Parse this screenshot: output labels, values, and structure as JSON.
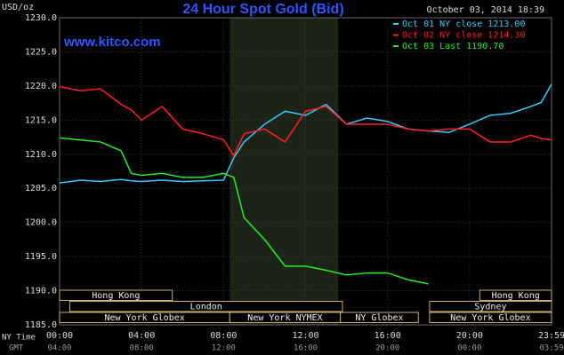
{
  "chart_data": {
    "type": "line",
    "title": "24 Hour Spot Gold (Bid)",
    "subtitle": "www.kitco.com",
    "timestamp": "October 03, 2014 18:39",
    "y_label": "USD/oz",
    "x_row_labels": [
      "NY Time",
      "GMT"
    ],
    "x": [
      0,
      1,
      2,
      3,
      3.5,
      4,
      5,
      6,
      7,
      8,
      8.5,
      9,
      10,
      11,
      12,
      13,
      14,
      15,
      16,
      17,
      18,
      19,
      20,
      21,
      22,
      23,
      23.5,
      24
    ],
    "series": [
      {
        "name": "Oct 01 NY close 1213.00",
        "color": "#33ccff",
        "values": [
          1205.8,
          1206.2,
          1206,
          1206.3,
          1206.1,
          1206,
          1206.2,
          1206,
          1206.1,
          1206.2,
          1209.5,
          1211.8,
          1214.4,
          1216.3,
          1215.7,
          1217.3,
          1214.4,
          1215.3,
          1214.8,
          1213.7,
          1213.4,
          1213.2,
          1214.4,
          1215.7,
          1216,
          1217,
          1217.6,
          1220.3
        ]
      },
      {
        "name": "Oct 02 NY close 1214.30",
        "color": "#ff2020",
        "values": [
          1219.9,
          1219.3,
          1219.6,
          1217.3,
          1216.5,
          1215,
          1217,
          1213.7,
          1213,
          1212.1,
          1209.8,
          1213,
          1213.7,
          1211.8,
          1216.3,
          1217,
          1214.4,
          1214.4,
          1214.4,
          1213.7,
          1213.4,
          1213.7,
          1213.7,
          1211.8,
          1211.8,
          1212.8,
          1212.3,
          1212.1
        ]
      },
      {
        "name": "Oct 03 Last 1190.70",
        "color": "#22ee22",
        "values": [
          1212.4,
          1212.1,
          1211.8,
          1210.5,
          1207.2,
          1206.9,
          1207.2,
          1206.6,
          1206.6,
          1207.2,
          1206.6,
          1200.7,
          1197.5,
          1193.6,
          1193.6,
          1193,
          1192.3,
          1192.6,
          1192.6,
          1191.6,
          1191,
          null,
          null,
          null,
          null,
          null,
          null,
          null
        ]
      }
    ],
    "xlim": [
      0,
      24
    ],
    "xticks": [
      {
        "value": 0,
        "label": "00:00"
      },
      {
        "value": 4,
        "label": "04:00"
      },
      {
        "value": 8,
        "label": "08:00"
      },
      {
        "value": 12,
        "label": "12:00"
      },
      {
        "value": 16,
        "label": "16:00"
      },
      {
        "value": 20,
        "label": "20:00"
      },
      {
        "value": 24,
        "label": "23:59"
      }
    ],
    "gmt_tick_labels": [
      "04:00",
      "08:00",
      "12:00",
      "16:00",
      "20:00",
      "00:00",
      "03:59"
    ],
    "ylim": [
      1185,
      1230
    ],
    "yticks": [
      {
        "value": 1185,
        "label": "1185.0"
      },
      {
        "value": 1190,
        "label": "1190.0"
      },
      {
        "value": 1195,
        "label": "1195.0"
      },
      {
        "value": 1200,
        "label": "1200.0"
      },
      {
        "value": 1205,
        "label": "1205.0"
      },
      {
        "value": 1210,
        "label": "1210.0"
      },
      {
        "value": 1215,
        "label": "1215.0"
      },
      {
        "value": 1220,
        "label": "1220.0"
      },
      {
        "value": 1225,
        "label": "1225.0"
      },
      {
        "value": 1230,
        "label": "1230.0"
      }
    ],
    "grid": true,
    "highlight": [
      8.3,
      13.6
    ],
    "sessions": [
      {
        "label": "Hong Kong",
        "row": 0,
        "start": 0,
        "end": 5.5
      },
      {
        "label": "Hong Kong",
        "row": 0,
        "start": 20.5,
        "end": 24
      },
      {
        "label": "London",
        "row": 1,
        "start": 0.5,
        "end": 13.8
      },
      {
        "label": "Sydney",
        "row": 1,
        "start": 18.05,
        "end": 24
      },
      {
        "label": "New York Globex",
        "row": 2,
        "start": 0,
        "end": 8.3
      },
      {
        "label": "New York NYMEX",
        "row": 2,
        "start": 8.3,
        "end": 13.7
      },
      {
        "label": "NY Globex",
        "row": 2,
        "start": 13.7,
        "end": 17.5
      },
      {
        "label": "New York Globex",
        "row": 2,
        "start": 18.05,
        "end": 24
      }
    ]
  }
}
